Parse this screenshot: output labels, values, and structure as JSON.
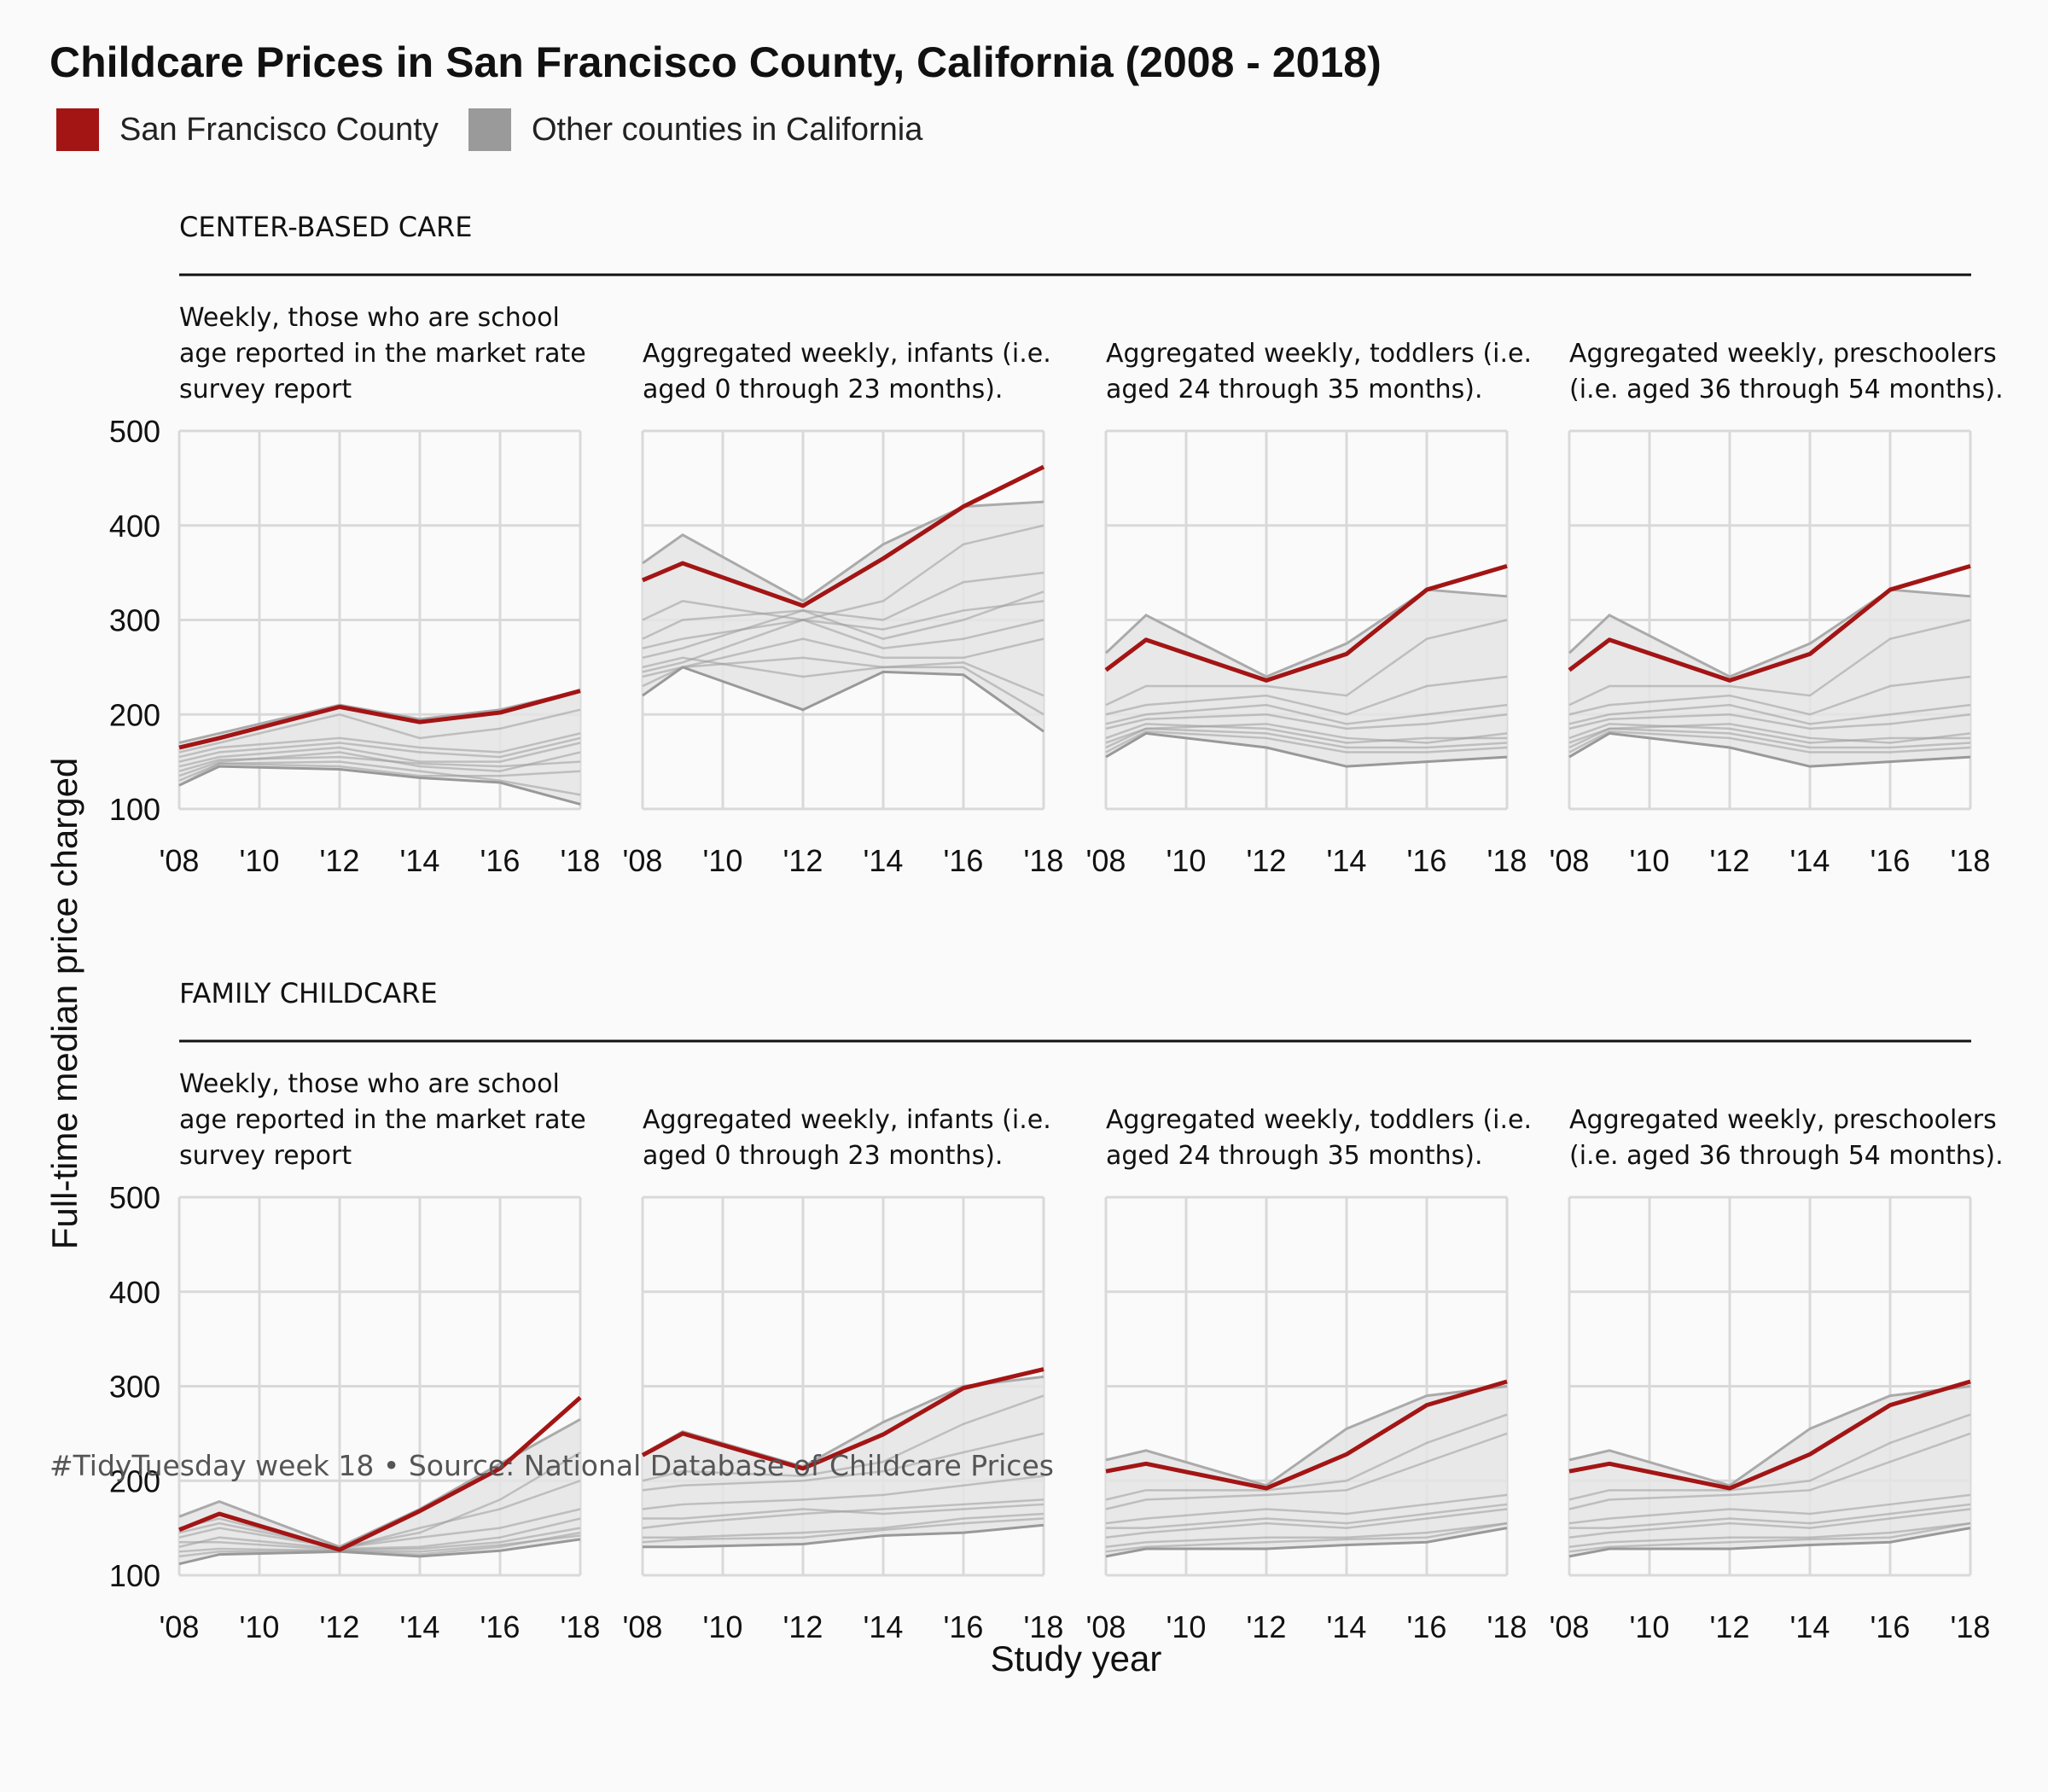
{
  "title": "Childcare Prices in San Francisco County, California (2008 - 2018)",
  "legend": [
    {
      "label": "San Francisco County",
      "color": "#a31515"
    },
    {
      "label": "Other counties in California",
      "color": "#9a9a9a"
    }
  ],
  "caption": "#TidyTuesday week 18  •  Source: National Database of Childcare Prices",
  "colors": {
    "highlight": "#a31515",
    "other": "#9a9a9a",
    "band": "#e4e4e4",
    "grid": "#d9d9d9"
  },
  "chart_data": {
    "type": "line",
    "xlabel": "Study year",
    "ylabel": "Full-time median price charged",
    "xlim": [
      2008,
      2018
    ],
    "ylim": [
      100,
      500
    ],
    "x_ticks": [
      2008,
      2010,
      2012,
      2014,
      2016,
      2018
    ],
    "x_tick_labels": [
      "'08",
      "'10",
      "'12",
      "'14",
      "'16",
      "'18"
    ],
    "y_ticks": [
      100,
      200,
      300,
      400,
      500
    ],
    "y_tick_labels": [
      "100",
      "200",
      "300",
      "400",
      "500"
    ],
    "grid": true,
    "years": [
      2008,
      2009,
      2012,
      2014,
      2016,
      2018
    ],
    "sections": [
      {
        "label": "CENTER-BASED CARE",
        "panels": [
          {
            "subtitle": [
              "Weekly, those who are school",
              "age reported in the market rate",
              "survey report"
            ],
            "sf": [
              165,
              175,
              208,
              192,
              202,
              225
            ],
            "band_upper": [
              170,
              180,
              210,
              195,
              205,
              225
            ],
            "band_lower": [
              125,
              145,
              142,
              133,
              128,
              105
            ],
            "others": [
              [
                135,
                150,
                160,
                145,
                140,
                160
              ],
              [
                145,
                155,
                165,
                150,
                150,
                170
              ],
              [
                125,
                148,
                150,
                140,
                130,
                115
              ],
              [
                150,
                160,
                170,
                160,
                155,
                175
              ],
              [
                140,
                152,
                155,
                148,
                145,
                150
              ],
              [
                155,
                165,
                175,
                165,
                160,
                180
              ],
              [
                130,
                148,
                145,
                135,
                135,
                140
              ],
              [
                160,
                170,
                200,
                175,
                185,
                205
              ]
            ]
          },
          {
            "subtitle": [
              "Aggregated weekly, infants (i.e.",
              "aged 0 through 23 months)."
            ],
            "sf": [
              342,
              360,
              315,
              365,
              420,
              462
            ],
            "band_upper": [
              360,
              390,
              320,
              380,
              420,
              425
            ],
            "band_lower": [
              220,
              250,
              205,
              245,
              242,
              182
            ],
            "others": [
              [
                245,
                255,
                300,
                270,
                280,
                300
              ],
              [
                260,
                270,
                310,
                280,
                300,
                330
              ],
              [
                230,
                250,
                260,
                250,
                250,
                200
              ],
              [
                280,
                300,
                310,
                300,
                340,
                350
              ],
              [
                250,
                260,
                240,
                250,
                255,
                220
              ],
              [
                300,
                320,
                300,
                320,
                380,
                400
              ],
              [
                240,
                250,
                280,
                260,
                260,
                280
              ],
              [
                270,
                280,
                300,
                290,
                310,
                320
              ]
            ]
          },
          {
            "subtitle": [
              "Aggregated weekly, toddlers (i.e.",
              "aged 24 through 35 months)."
            ],
            "sf": [
              247,
              279,
              236,
              264,
              332,
              357
            ],
            "band_upper": [
              265,
              305,
              240,
              275,
              332,
              325
            ],
            "band_lower": [
              155,
              180,
              165,
              145,
              150,
              155
            ],
            "others": [
              [
                170,
                185,
                190,
                175,
                170,
                180
              ],
              [
                185,
                195,
                200,
                185,
                190,
                200
              ],
              [
                160,
                182,
                175,
                160,
                160,
                165
              ],
              [
                200,
                210,
                220,
                200,
                230,
                240
              ],
              [
                175,
                190,
                185,
                170,
                175,
                175
              ],
              [
                210,
                230,
                230,
                220,
                280,
                300
              ],
              [
                165,
                185,
                180,
                165,
                165,
                170
              ],
              [
                190,
                200,
                210,
                190,
                200,
                210
              ]
            ]
          },
          {
            "subtitle": [
              "Aggregated weekly, preschoolers",
              "(i.e. aged 36 through 54 months)."
            ],
            "sf": [
              247,
              279,
              236,
              264,
              332,
              357
            ],
            "band_upper": [
              265,
              305,
              240,
              275,
              332,
              325
            ],
            "band_lower": [
              155,
              180,
              165,
              145,
              150,
              155
            ],
            "others": [
              [
                170,
                185,
                190,
                175,
                170,
                180
              ],
              [
                185,
                195,
                200,
                185,
                190,
                200
              ],
              [
                160,
                182,
                175,
                160,
                160,
                165
              ],
              [
                200,
                210,
                220,
                200,
                230,
                240
              ],
              [
                175,
                190,
                185,
                170,
                175,
                175
              ],
              [
                210,
                230,
                230,
                220,
                280,
                300
              ],
              [
                165,
                185,
                180,
                165,
                165,
                170
              ],
              [
                190,
                200,
                210,
                190,
                200,
                210
              ]
            ]
          }
        ]
      },
      {
        "label": "FAMILY CHILDCARE",
        "panels": [
          {
            "subtitle": [
              "Weekly, those who are school",
              "age reported in the market rate",
              "survey report"
            ],
            "sf": [
              148,
              165,
              127,
              168,
              213,
              288
            ],
            "band_upper": [
              162,
              178,
              130,
              170,
              218,
              265
            ],
            "band_lower": [
              112,
              122,
              125,
              120,
              126,
              138
            ],
            "others": [
              [
                130,
                140,
                128,
                130,
                140,
                160
              ],
              [
                140,
                150,
                129,
                140,
                150,
                170
              ],
              [
                120,
                125,
                126,
                122,
                130,
                145
              ],
              [
                150,
                160,
                128,
                150,
                170,
                200
              ],
              [
                135,
                135,
                127,
                128,
                135,
                150
              ],
              [
                145,
                155,
                129,
                145,
                180,
                230
              ],
              [
                125,
                128,
                126,
                125,
                132,
                142
              ]
            ]
          },
          {
            "subtitle": [
              "Aggregated weekly, infants (i.e.",
              "aged 0 through 23 months)."
            ],
            "sf": [
              227,
              250,
              213,
              249,
              298,
              318
            ],
            "band_upper": [
              228,
              252,
              215,
              262,
              300,
              310
            ],
            "band_lower": [
              130,
              130,
              133,
              142,
              145,
              153
            ],
            "others": [
              [
                150,
                155,
                165,
                170,
                175,
                180
              ],
              [
                170,
                175,
                180,
                185,
                195,
                205
              ],
              [
                140,
                140,
                145,
                150,
                160,
                165
              ],
              [
                190,
                195,
                200,
                210,
                230,
                250
              ],
              [
                160,
                160,
                170,
                165,
                170,
                175
              ],
              [
                200,
                210,
                205,
                220,
                260,
                290
              ],
              [
                135,
                138,
                140,
                148,
                155,
                160
              ]
            ]
          },
          {
            "subtitle": [
              "Aggregated weekly, toddlers (i.e.",
              "aged 24 through 35 months)."
            ],
            "sf": [
              210,
              218,
              192,
              228,
              280,
              305
            ],
            "band_upper": [
              222,
              232,
              195,
              255,
              290,
              300
            ],
            "band_lower": [
              120,
              128,
              128,
              132,
              135,
              150
            ],
            "others": [
              [
                140,
                145,
                155,
                150,
                160,
                170
              ],
              [
                155,
                160,
                170,
                165,
                175,
                185
              ],
              [
                130,
                135,
                140,
                140,
                145,
                155
              ],
              [
                170,
                180,
                185,
                190,
                220,
                250
              ],
              [
                150,
                150,
                160,
                155,
                165,
                175
              ],
              [
                180,
                190,
                190,
                200,
                240,
                270
              ],
              [
                125,
                130,
                135,
                138,
                140,
                155
              ]
            ]
          },
          {
            "subtitle": [
              "Aggregated weekly, preschoolers",
              "(i.e. aged 36 through 54 months)."
            ],
            "sf": [
              210,
              218,
              192,
              228,
              280,
              305
            ],
            "band_upper": [
              222,
              232,
              195,
              255,
              290,
              300
            ],
            "band_lower": [
              120,
              128,
              128,
              132,
              135,
              150
            ],
            "others": [
              [
                140,
                145,
                155,
                150,
                160,
                170
              ],
              [
                155,
                160,
                170,
                165,
                175,
                185
              ],
              [
                130,
                135,
                140,
                140,
                145,
                155
              ],
              [
                170,
                180,
                185,
                190,
                220,
                250
              ],
              [
                150,
                150,
                160,
                155,
                165,
                175
              ],
              [
                180,
                190,
                190,
                200,
                240,
                270
              ],
              [
                125,
                130,
                135,
                138,
                140,
                155
              ]
            ]
          }
        ]
      }
    ]
  }
}
